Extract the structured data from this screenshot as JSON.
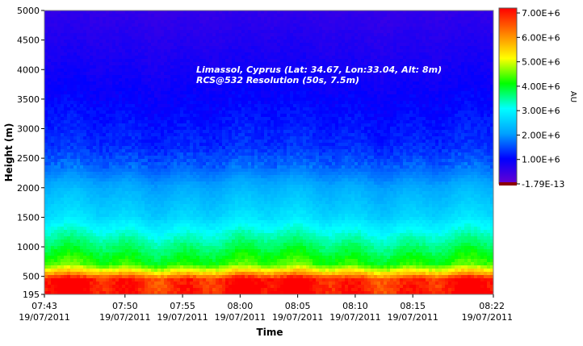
{
  "chart_data": {
    "type": "heatmap",
    "title": "",
    "xlabel": "Time",
    "ylabel": "Height (m)",
    "annotation_lines": [
      "Limassol, Cyprus (Lat: 34.67, Lon:33.04, Alt: 8m)",
      "RCS@532 Resolution (50s, 7.5m)"
    ],
    "y_ticks": [
      "5000",
      "4500",
      "4000",
      "3500",
      "3000",
      "2500",
      "2000",
      "1500",
      "1000",
      "500",
      "195"
    ],
    "y_tick_values": [
      5000,
      4500,
      4000,
      3500,
      3000,
      2500,
      2000,
      1500,
      1000,
      500,
      195
    ],
    "ylim": [
      195,
      5000
    ],
    "x_ticks": [
      {
        "time": "07:43",
        "date": "19/07/2011"
      },
      {
        "time": "07:50",
        "date": "19/07/2011"
      },
      {
        "time": "07:55",
        "date": "19/07/2011"
      },
      {
        "time": "08:00",
        "date": "19/07/2011"
      },
      {
        "time": "08:05",
        "date": "19/07/2011"
      },
      {
        "time": "08:10",
        "date": "19/07/2011"
      },
      {
        "time": "08:15",
        "date": "19/07/2011"
      },
      {
        "time": "08:22",
        "date": "19/07/2011"
      }
    ],
    "x_tick_minutes": [
      "07:43",
      "07:50",
      "07:55",
      "08:00",
      "08:05",
      "08:10",
      "08:15",
      "08:22"
    ],
    "xlim": [
      "07:43",
      "08:22"
    ],
    "colorbar": {
      "label": "AU",
      "ticks": [
        "7.00E+6",
        "6.00E+6",
        "5.00E+6",
        "4.00E+6",
        "3.00E+6",
        "2.00E+6",
        "1.00E+6",
        "-1.79E-13"
      ],
      "tick_values": [
        7000000,
        6000000,
        5000000,
        4000000,
        3000000,
        2000000,
        1000000,
        0
      ],
      "range": [
        0,
        7200000
      ],
      "colors": [
        "#6a00d0",
        "#0000ff",
        "#00a0ff",
        "#00ffff",
        "#00ff00",
        "#ffff00",
        "#ff8000",
        "#ff0000"
      ]
    },
    "profile": [
      {
        "height": 195,
        "value": 7100000
      },
      {
        "height": 450,
        "value": 7000000
      },
      {
        "height": 560,
        "value": 5600000
      },
      {
        "height": 700,
        "value": 4300000
      },
      {
        "height": 1000,
        "value": 3700000
      },
      {
        "height": 1500,
        "value": 2700000
      },
      {
        "height": 2000,
        "value": 2200000
      },
      {
        "height": 2300,
        "value": 1750000
      },
      {
        "height": 2700,
        "value": 1300000
      },
      {
        "height": 3500,
        "value": 1000000
      },
      {
        "height": 4500,
        "value": 700000
      },
      {
        "height": 5000,
        "value": 550000
      }
    ],
    "grid": false,
    "legend": "colorbar-right"
  }
}
